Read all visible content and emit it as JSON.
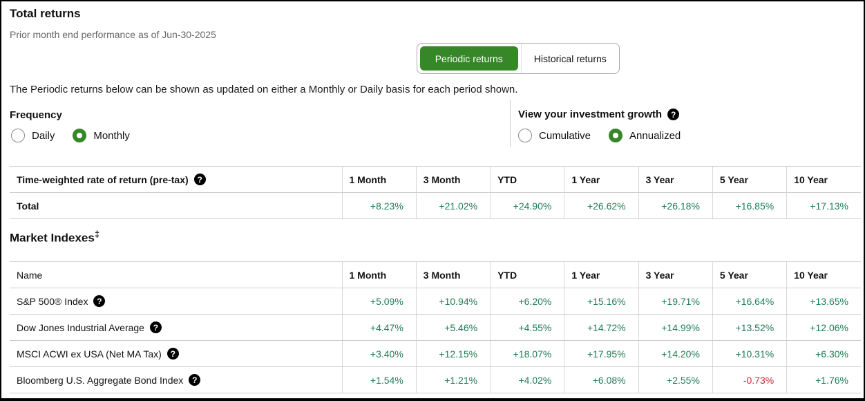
{
  "page": {
    "title": "Total returns",
    "subtitle": "Prior month end performance as of Jun-30-2025",
    "description": "The Periodic returns below can be shown as updated on either a Monthly or Daily basis for each period shown."
  },
  "icons": {
    "help": "?"
  },
  "colors": {
    "accent": "#368727",
    "positive": "#1e7c56",
    "negative": "#c5292e"
  },
  "toggle": {
    "periodic_label": "Periodic returns",
    "historical_label": "Historical returns",
    "selected": "Periodic returns"
  },
  "frequency": {
    "label": "Frequency",
    "options": [
      {
        "label": "Daily",
        "selected": false
      },
      {
        "label": "Monthly",
        "selected": true
      }
    ]
  },
  "growth": {
    "label": "View your investment growth",
    "options": [
      {
        "label": "Cumulative",
        "selected": false
      },
      {
        "label": "Annualized",
        "selected": true
      }
    ]
  },
  "returns_table": {
    "header_label": "Time-weighted rate of return (pre-tax)",
    "columns": [
      "1 Month",
      "3 Month",
      "YTD",
      "1 Year",
      "3 Year",
      "5 Year",
      "10 Year"
    ],
    "rows": [
      {
        "label": "Total",
        "values": [
          "+8.23%",
          "+21.02%",
          "+24.90%",
          "+26.62%",
          "+26.18%",
          "+16.85%",
          "+17.13%"
        ]
      }
    ]
  },
  "market_indexes": {
    "title": "Market Indexes",
    "title_superscript": "‡",
    "name_header": "Name",
    "columns": [
      "1 Month",
      "3 Month",
      "YTD",
      "1 Year",
      "3 Year",
      "5 Year",
      "10 Year"
    ],
    "rows": [
      {
        "label": "S&P 500® Index",
        "values": [
          "+5.09%",
          "+10.94%",
          "+6.20%",
          "+15.16%",
          "+19.71%",
          "+16.64%",
          "+13.65%"
        ]
      },
      {
        "label": "Dow Jones Industrial Average",
        "values": [
          "+4.47%",
          "+5.46%",
          "+4.55%",
          "+14.72%",
          "+14.99%",
          "+13.52%",
          "+12.06%"
        ]
      },
      {
        "label": "MSCI ACWI ex USA (Net MA Tax)",
        "values": [
          "+3.40%",
          "+12.15%",
          "+18.07%",
          "+17.95%",
          "+14.20%",
          "+10.31%",
          "+6.30%"
        ]
      },
      {
        "label": "Bloomberg U.S. Aggregate Bond Index",
        "values": [
          "+1.54%",
          "+1.21%",
          "+4.02%",
          "+6.08%",
          "+2.55%",
          "-0.73%",
          "+1.76%"
        ]
      }
    ]
  }
}
